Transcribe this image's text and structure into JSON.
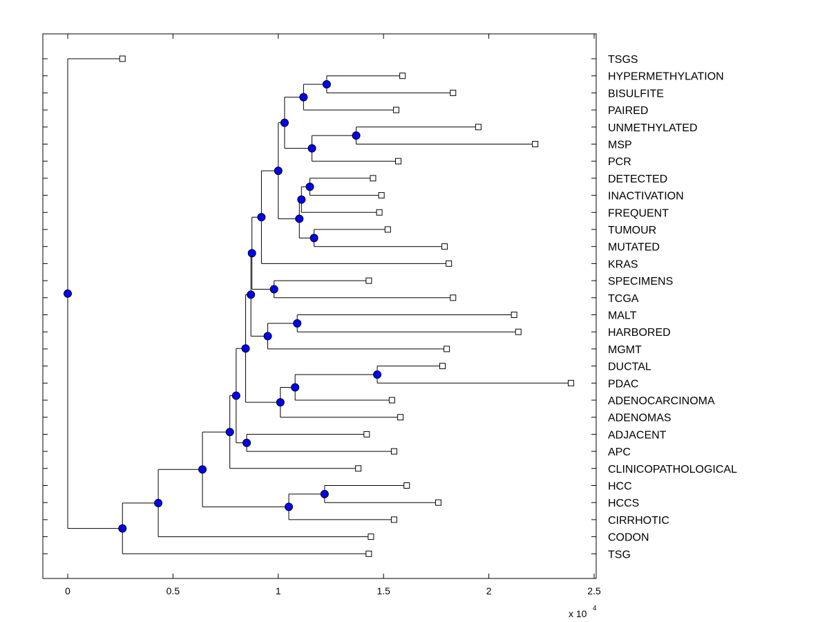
{
  "chart_data": {
    "type": "dendrogram",
    "title": "",
    "xlabel": "",
    "ylabel": "",
    "x_multiplier_label": "x 10",
    "x_multiplier_exponent": "4",
    "xlim": [
      -0.12,
      2.5
    ],
    "xticks": [
      0,
      0.5,
      1,
      1.5,
      2,
      2.5
    ],
    "xtick_labels": [
      "0",
      "0.5",
      "1",
      "1.5",
      "2",
      "2.5"
    ],
    "leaves": [
      {
        "label": "TSGS",
        "x": 0.26
      },
      {
        "label": "HYPERMETHYLATION",
        "x": 1.59
      },
      {
        "label": "BISULFITE",
        "x": 1.83
      },
      {
        "label": "PAIRED",
        "x": 1.56
      },
      {
        "label": "UNMETHYLATED",
        "x": 1.95
      },
      {
        "label": "MSP",
        "x": 2.22
      },
      {
        "label": "PCR",
        "x": 1.57
      },
      {
        "label": "DETECTED",
        "x": 1.45
      },
      {
        "label": "INACTIVATION",
        "x": 1.49
      },
      {
        "label": "FREQUENT",
        "x": 1.48
      },
      {
        "label": "TUMOUR",
        "x": 1.52
      },
      {
        "label": "MUTATED",
        "x": 1.79
      },
      {
        "label": "KRAS",
        "x": 1.81
      },
      {
        "label": "SPECIMENS",
        "x": 1.43
      },
      {
        "label": "TCGA",
        "x": 1.83
      },
      {
        "label": "MALT",
        "x": 2.12
      },
      {
        "label": "HARBORED",
        "x": 2.14
      },
      {
        "label": "MGMT",
        "x": 1.8
      },
      {
        "label": "DUCTAL",
        "x": 1.78
      },
      {
        "label": "PDAC",
        "x": 2.39
      },
      {
        "label": "ADENOCARCINOMA",
        "x": 1.54
      },
      {
        "label": "ADENOMAS",
        "x": 1.58
      },
      {
        "label": "ADJACENT",
        "x": 1.42
      },
      {
        "label": "APC",
        "x": 1.55
      },
      {
        "label": "CLINICOPATHOLOGICAL",
        "x": 1.38
      },
      {
        "label": "HCC",
        "x": 1.61
      },
      {
        "label": "HCCS",
        "x": 1.76
      },
      {
        "label": "CIRRHOTIC",
        "x": 1.55
      },
      {
        "label": "CODON",
        "x": 1.44
      },
      {
        "label": "TSG",
        "x": 1.43
      }
    ],
    "nodes": [
      {
        "id": "n1",
        "x": 1.23,
        "children": [
          "L1",
          "L2"
        ]
      },
      {
        "id": "n2",
        "x": 1.12,
        "children": [
          "n1",
          "L3"
        ]
      },
      {
        "id": "n3",
        "x": 1.37,
        "children": [
          "L4",
          "L5"
        ]
      },
      {
        "id": "n4",
        "x": 1.16,
        "children": [
          "n3",
          "L6"
        ]
      },
      {
        "id": "n5",
        "x": 1.03,
        "children": [
          "n2",
          "n4"
        ]
      },
      {
        "id": "n6",
        "x": 1.15,
        "children": [
          "L7",
          "L8"
        ]
      },
      {
        "id": "n7",
        "x": 1.11,
        "children": [
          "n6",
          "L9"
        ]
      },
      {
        "id": "n8",
        "x": 1.17,
        "children": [
          "L10",
          "L11"
        ]
      },
      {
        "id": "n9",
        "x": 1.1,
        "children": [
          "n7",
          "n8"
        ]
      },
      {
        "id": "n10",
        "x": 1.0,
        "children": [
          "n5",
          "n9"
        ]
      },
      {
        "id": "n11",
        "x": 0.92,
        "children": [
          "n10",
          "L12"
        ]
      },
      {
        "id": "n12",
        "x": 0.98,
        "children": [
          "L13",
          "L14"
        ]
      },
      {
        "id": "n13",
        "x": 0.875,
        "children": [
          "n11",
          "n12"
        ]
      },
      {
        "id": "n14",
        "x": 1.09,
        "children": [
          "L15",
          "L16"
        ]
      },
      {
        "id": "n15",
        "x": 0.95,
        "children": [
          "n14",
          "L17"
        ]
      },
      {
        "id": "n16",
        "x": 0.87,
        "children": [
          "n13",
          "n15"
        ]
      },
      {
        "id": "n17",
        "x": 1.47,
        "children": [
          "L18",
          "L19"
        ]
      },
      {
        "id": "n18",
        "x": 1.08,
        "children": [
          "n17",
          "L20"
        ]
      },
      {
        "id": "n19",
        "x": 1.01,
        "children": [
          "n18",
          "L21"
        ]
      },
      {
        "id": "n20",
        "x": 0.845,
        "children": [
          "n16",
          "n19"
        ]
      },
      {
        "id": "n21",
        "x": 0.85,
        "children": [
          "L22",
          "L23"
        ]
      },
      {
        "id": "n22",
        "x": 0.8,
        "children": [
          "n20",
          "n21"
        ]
      },
      {
        "id": "n23",
        "x": 0.77,
        "children": [
          "n22",
          "L24"
        ]
      },
      {
        "id": "n24",
        "x": 1.22,
        "children": [
          "L25",
          "L26"
        ]
      },
      {
        "id": "n25",
        "x": 1.05,
        "children": [
          "n24",
          "L27"
        ]
      },
      {
        "id": "n26",
        "x": 0.64,
        "children": [
          "n23",
          "n25"
        ]
      },
      {
        "id": "n27",
        "x": 0.43,
        "children": [
          "n26",
          "L28"
        ]
      },
      {
        "id": "n28",
        "x": 0.26,
        "children": [
          "n27",
          "L29"
        ]
      },
      {
        "id": "n29",
        "x": 0.0,
        "children": [
          "L0",
          "n28"
        ]
      }
    ],
    "colors": {
      "node_fill": "#0000ff",
      "leaf_fill": "#ffffff",
      "line": "#000000"
    }
  }
}
